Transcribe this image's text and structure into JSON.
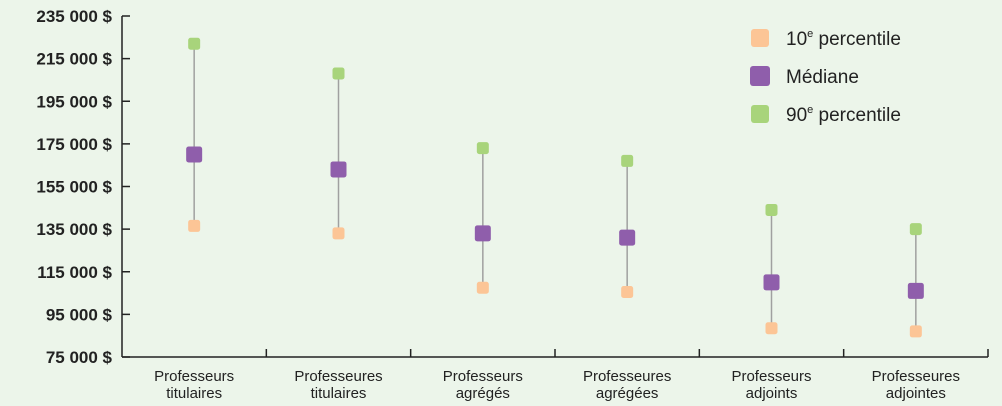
{
  "chart_data": {
    "type": "scatter",
    "title": "",
    "xlabel": "",
    "ylabel": "",
    "categories": [
      [
        "Professeurs",
        "titulaires"
      ],
      [
        "Professeures",
        "titulaires"
      ],
      [
        "Professeurs",
        "agrégés"
      ],
      [
        "Professeures",
        "agrégées"
      ],
      [
        "Professeurs",
        "adjoints"
      ],
      [
        "Professeures",
        "adjointes"
      ]
    ],
    "ylim": [
      75000,
      235000
    ],
    "yticks": [
      75000,
      95000,
      115000,
      135000,
      155000,
      175000,
      195000,
      215000,
      235000
    ],
    "ytick_labels": [
      "75 000 $",
      "95 000 $",
      "115 000 $",
      "135 000 $",
      "155 000 $",
      "175 000 $",
      "195 000 $",
      "215 000 $",
      "235 000 $"
    ],
    "grid": false,
    "legend_position": "top-right",
    "series": [
      {
        "name": "10e percentile",
        "name_parts": [
          "10",
          "e",
          " percentile"
        ],
        "color": "#fcc596",
        "values": [
          136500,
          133000,
          107500,
          105500,
          88500,
          87000
        ]
      },
      {
        "name": "Médiane",
        "name_parts": [
          "Médiane",
          "",
          ""
        ],
        "color": "#8f5eab",
        "values": [
          170000,
          163000,
          133000,
          131000,
          110000,
          106000
        ]
      },
      {
        "name": "90e percentile",
        "name_parts": [
          "90",
          "e",
          " percentile"
        ],
        "color": "#a8d47b",
        "values": [
          222000,
          208000,
          173000,
          167000,
          144000,
          135000
        ]
      }
    ],
    "range_line_color": "#a0a0a0",
    "axis_color": "#222222"
  }
}
